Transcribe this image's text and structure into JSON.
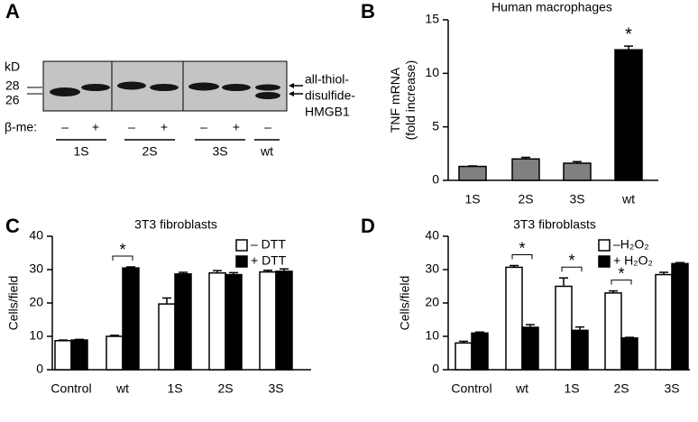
{
  "blot": {
    "label": "A",
    "unit": "kD",
    "markers": [
      "28",
      "26"
    ],
    "row_label": "β-me:",
    "treatments": [
      "–",
      "+",
      "–",
      "+",
      "–",
      "+",
      "–"
    ],
    "groups": [
      "1S",
      "2S",
      "3S",
      "wt"
    ],
    "band_labels": [
      "all-thiol-",
      "disulfide-",
      "HMGB1"
    ]
  },
  "chart_data": [
    {
      "type": "bar",
      "label": "B",
      "title": "Human macrophages",
      "ylabel": [
        "TNF mRNA",
        "(fold increase)"
      ],
      "categories": [
        "1S",
        "2S",
        "3S",
        "wt"
      ],
      "values": [
        1.3,
        2.0,
        1.6,
        12.2
      ],
      "errors": [
        0.05,
        0.15,
        0.15,
        0.35
      ],
      "colors": [
        "#808080",
        "#808080",
        "#808080",
        "#000000"
      ],
      "ylim": [
        0,
        15
      ],
      "yticks": [
        0,
        5,
        10,
        15
      ],
      "annotations": [
        {
          "category": "wt",
          "label": "*"
        }
      ]
    },
    {
      "type": "grouped_bar",
      "label": "C",
      "title": "3T3 fibroblasts",
      "ylabel": [
        "Cells/field"
      ],
      "categories": [
        "Control",
        "wt",
        "1S",
        "2S",
        "3S"
      ],
      "series": [
        {
          "name": "– DTT",
          "color": "#ffffff",
          "values": [
            8.7,
            10,
            19.7,
            29,
            29.3
          ],
          "errors": [
            0.2,
            0.3,
            1.8,
            0.7,
            0.5
          ]
        },
        {
          "name": "+ DTT",
          "color": "#000000",
          "values": [
            8.9,
            30.5,
            28.7,
            28.5,
            29.5
          ],
          "errors": [
            0.2,
            0.3,
            0.5,
            0.6,
            0.7
          ]
        }
      ],
      "ylim": [
        0,
        40
      ],
      "yticks": [
        0,
        10,
        20,
        30,
        40
      ],
      "legend": "upper right",
      "brackets": [
        {
          "category": "wt",
          "label": "*"
        }
      ]
    },
    {
      "type": "grouped_bar",
      "label": "D",
      "title": "3T3 fibroblasts",
      "ylabel": [
        "Cells/field"
      ],
      "categories": [
        "Control",
        "wt",
        "1S",
        "2S",
        "3S"
      ],
      "series": [
        {
          "name": "–H₂O₂",
          "color": "#ffffff",
          "values": [
            8,
            30.7,
            25,
            23,
            28.5
          ],
          "errors": [
            0.5,
            0.5,
            2.5,
            0.6,
            0.7
          ]
        },
        {
          "name": "+ H₂O₂",
          "color": "#000000",
          "values": [
            11,
            12.7,
            11.8,
            9.5,
            31.8
          ],
          "errors": [
            0.3,
            0.8,
            1,
            0.2,
            0.3
          ]
        }
      ],
      "ylim": [
        0,
        40
      ],
      "yticks": [
        0,
        10,
        20,
        30,
        40
      ],
      "legend": "upper right",
      "brackets": [
        {
          "category": "wt",
          "label": "*"
        },
        {
          "category": "1S",
          "label": "*"
        },
        {
          "category": "2S",
          "label": "*"
        }
      ]
    }
  ]
}
